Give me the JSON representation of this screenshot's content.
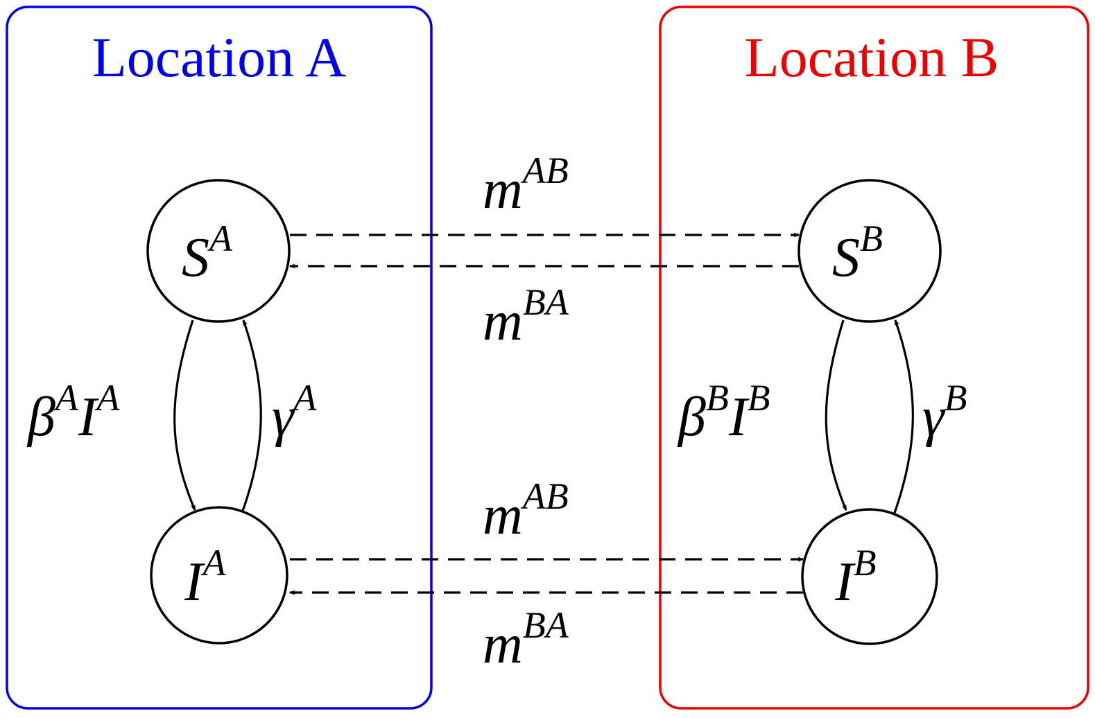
{
  "colors": {
    "location_a": "#0000ee",
    "location_b": "#ee0000",
    "stroke": "#000000"
  },
  "locations": {
    "a": {
      "title": "Location A"
    },
    "b": {
      "title": "Location B"
    }
  },
  "nodes": {
    "sa": {
      "base": "S",
      "sup": "A"
    },
    "ia": {
      "base": "I",
      "sup": "A"
    },
    "sb": {
      "base": "S",
      "sup": "B"
    },
    "ib": {
      "base": "I",
      "sup": "B"
    }
  },
  "edges": {
    "infection_a": {
      "b1": "β",
      "s1": "A",
      "b2": "I",
      "s2": "A"
    },
    "recovery_a": {
      "b1": "γ",
      "s1": "A"
    },
    "infection_b": {
      "b1": "β",
      "s1": "B",
      "b2": "I",
      "s2": "B"
    },
    "recovery_b": {
      "b1": "γ",
      "s1": "B"
    },
    "s_ab": {
      "base": "m",
      "sup": "AB"
    },
    "s_ba": {
      "base": "m",
      "sup": "BA"
    },
    "i_ab": {
      "base": "m",
      "sup": "AB"
    },
    "i_ba": {
      "base": "m",
      "sup": "BA"
    }
  }
}
